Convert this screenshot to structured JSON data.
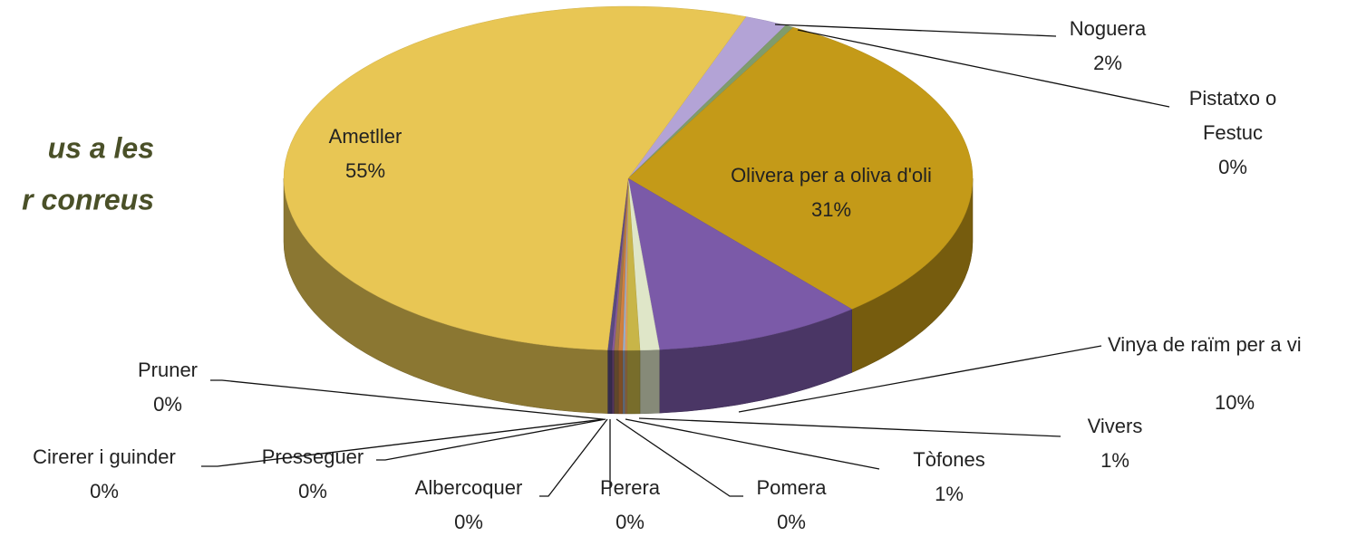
{
  "chart_data": {
    "type": "pie3d",
    "fragments": [
      "us a les",
      "r conreus"
    ],
    "categories": [
      "Noguera",
      "Pistatxo o Festuc",
      "Olivera per a oliva d'oli",
      "Vinya de raïm per a vi",
      "Vivers",
      "Tòfones",
      "Pomera",
      "Perera",
      "Albercoquer",
      "Presseguer",
      "Cirerer i guinder",
      "Pruner",
      "Ametller"
    ],
    "values": [
      2.0,
      0.4,
      30.8,
      9.8,
      0.9,
      0.6,
      0.1,
      0.1,
      0.2,
      0.2,
      0.1,
      0.2,
      54.6
    ],
    "value_labels": [
      "2%",
      "0%",
      "31%",
      "10%",
      "1%",
      "1%",
      "0%",
      "0%",
      "0%",
      "0%",
      "0%",
      "0%",
      "55%"
    ],
    "colors": [
      "#b3a3d6",
      "#7f9c6c",
      "#c49a18",
      "#7b5aa8",
      "#dfe6c8",
      "#c8b548",
      "#e0a060",
      "#9ab0d0",
      "#d08040",
      "#a07848",
      "#8a5a9a",
      "#5a4a80",
      "#e8c654"
    ]
  }
}
